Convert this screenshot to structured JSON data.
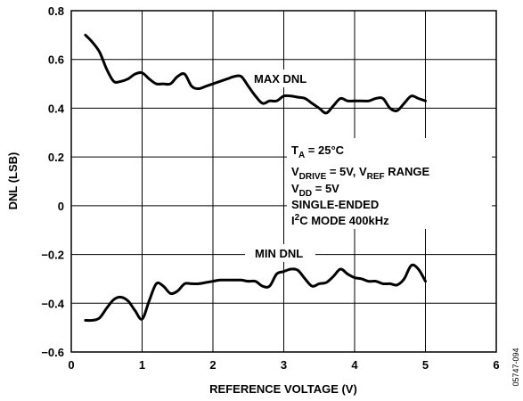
{
  "chart_data": {
    "type": "line",
    "xlabel": "REFERENCE VOLTAGE (V)",
    "ylabel": "DNL (LSB)",
    "xlim": [
      0,
      6
    ],
    "ylim": [
      -0.6,
      0.8
    ],
    "x_ticks": [
      "0",
      "1",
      "2",
      "3",
      "4",
      "5",
      "6"
    ],
    "y_ticks": [
      "0.8",
      "0.6",
      "0.4",
      "0.2",
      "0",
      "−0.2",
      "−0.4",
      "−0.6"
    ],
    "grid": true,
    "series": [
      {
        "name": "MAX DNL",
        "x": [
          0.2,
          0.3,
          0.4,
          0.5,
          0.6,
          0.7,
          0.8,
          0.9,
          1.0,
          1.1,
          1.2,
          1.3,
          1.4,
          1.5,
          1.6,
          1.7,
          1.8,
          1.9,
          2.0,
          2.1,
          2.2,
          2.3,
          2.4,
          2.5,
          2.6,
          2.7,
          2.8,
          2.9,
          3.0,
          3.1,
          3.2,
          3.3,
          3.4,
          3.5,
          3.6,
          3.7,
          3.8,
          3.9,
          4.0,
          4.1,
          4.2,
          4.3,
          4.4,
          4.5,
          4.6,
          4.7,
          4.8,
          4.9,
          5.0
        ],
        "y": [
          0.7,
          0.67,
          0.63,
          0.56,
          0.51,
          0.51,
          0.52,
          0.54,
          0.545,
          0.52,
          0.5,
          0.5,
          0.5,
          0.53,
          0.54,
          0.49,
          0.48,
          0.49,
          0.5,
          0.51,
          0.52,
          0.53,
          0.53,
          0.49,
          0.45,
          0.42,
          0.43,
          0.43,
          0.45,
          0.45,
          0.445,
          0.44,
          0.42,
          0.4,
          0.38,
          0.41,
          0.44,
          0.43,
          0.43,
          0.43,
          0.43,
          0.44,
          0.44,
          0.4,
          0.39,
          0.42,
          0.45,
          0.44,
          0.43
        ]
      },
      {
        "name": "MIN DNL",
        "x": [
          0.2,
          0.3,
          0.4,
          0.5,
          0.6,
          0.7,
          0.8,
          0.9,
          1.0,
          1.1,
          1.2,
          1.3,
          1.4,
          1.5,
          1.6,
          1.7,
          1.8,
          1.9,
          2.0,
          2.1,
          2.2,
          2.3,
          2.4,
          2.5,
          2.6,
          2.7,
          2.8,
          2.9,
          3.0,
          3.1,
          3.2,
          3.3,
          3.4,
          3.5,
          3.6,
          3.7,
          3.8,
          3.9,
          4.0,
          4.1,
          4.2,
          4.3,
          4.4,
          4.5,
          4.6,
          4.7,
          4.8,
          4.9,
          5.0
        ],
        "y": [
          -0.47,
          -0.47,
          -0.46,
          -0.42,
          -0.385,
          -0.375,
          -0.39,
          -0.43,
          -0.465,
          -0.39,
          -0.32,
          -0.33,
          -0.36,
          -0.35,
          -0.32,
          -0.32,
          -0.32,
          -0.315,
          -0.31,
          -0.305,
          -0.305,
          -0.305,
          -0.305,
          -0.31,
          -0.31,
          -0.33,
          -0.33,
          -0.28,
          -0.27,
          -0.26,
          -0.265,
          -0.3,
          -0.33,
          -0.32,
          -0.315,
          -0.29,
          -0.26,
          -0.28,
          -0.295,
          -0.3,
          -0.31,
          -0.31,
          -0.32,
          -0.32,
          -0.325,
          -0.3,
          -0.245,
          -0.26,
          -0.31
        ]
      }
    ],
    "annotations": {
      "max_label": "MAX DNL",
      "min_label": "MIN DNL",
      "conditions": {
        "line1_main": "T",
        "line1_sub": "A",
        "line1_rest": " = 25°C",
        "line2_a": "V",
        "line2_a_sub": "DRIVE",
        "line2_b": " = 5V, V",
        "line2_b_sub": "REF",
        "line2_c": " RANGE",
        "line3_main": "V",
        "line3_sub": "DD",
        "line3_rest": " = 5V",
        "line4": "SINGLE-ENDED",
        "line5_a": "I",
        "line5_sup": "2",
        "line5_b": "C MODE 400kHz"
      },
      "figure_id": "05747-094"
    }
  }
}
